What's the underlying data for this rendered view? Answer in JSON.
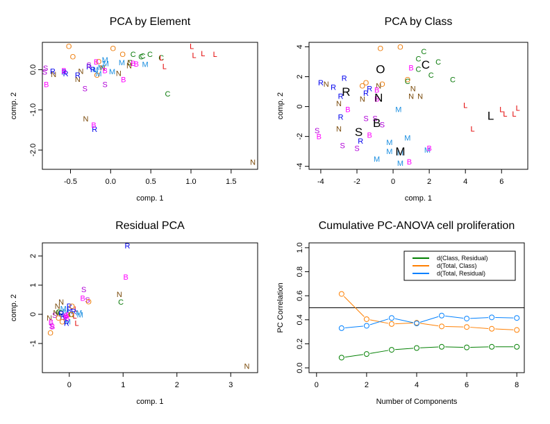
{
  "colors": {
    "O": "#ee7f10",
    "C": "#0a7a0a",
    "L": "#e30000",
    "M": "#1a8ee0",
    "N": "#7a4a0a",
    "R": "#0000ee",
    "S": "#b000d8",
    "B": "#ff00ff",
    "green": "#007f00",
    "orange": "#ff7f00",
    "blue": "#0080ff"
  },
  "chart_data": [
    {
      "type": "scatter",
      "title": "PCA by Element",
      "xlabel": "comp. 1",
      "ylabel": "comp. 2",
      "xlim": [
        -0.85,
        1.83
      ],
      "ylim": [
        -2.48,
        0.68
      ],
      "xticks": [
        -0.5,
        0.0,
        0.5,
        1.0,
        1.5
      ],
      "xtick_labels": [
        "-0.5",
        "0.0",
        "0.5",
        "1.0",
        "1.5"
      ],
      "yticks": [
        0.0,
        -1.0,
        -2.0
      ],
      "ytick_labels": [
        "0.0",
        "-1.0",
        "-2.0"
      ],
      "points": [
        {
          "label": "O",
          "x": -0.52,
          "y": 0.58
        },
        {
          "label": "O",
          "x": -0.47,
          "y": 0.32
        },
        {
          "label": "O",
          "x": 0.03,
          "y": 0.53
        },
        {
          "label": "O",
          "x": 0.15,
          "y": 0.38
        },
        {
          "label": "O",
          "x": -0.15,
          "y": 0.2
        },
        {
          "label": "O",
          "x": -0.17,
          "y": -0.13
        },
        {
          "label": "C",
          "x": 0.28,
          "y": 0.38
        },
        {
          "label": "C",
          "x": 0.38,
          "y": 0.32
        },
        {
          "label": "C",
          "x": 0.4,
          "y": 0.34
        },
        {
          "label": "C",
          "x": 0.49,
          "y": 0.38
        },
        {
          "label": "C",
          "x": 0.63,
          "y": 0.3
        },
        {
          "label": "C",
          "x": 0.71,
          "y": -0.6
        },
        {
          "label": "C",
          "x": 0.24,
          "y": 0.18
        },
        {
          "label": "L",
          "x": 1.01,
          "y": 0.58
        },
        {
          "label": "L",
          "x": 1.04,
          "y": 0.36
        },
        {
          "label": "L",
          "x": 1.15,
          "y": 0.4
        },
        {
          "label": "L",
          "x": 1.3,
          "y": 0.38
        },
        {
          "label": "L",
          "x": 0.67,
          "y": 0.08
        },
        {
          "label": "L",
          "x": 0.63,
          "y": 0.3
        },
        {
          "label": "M",
          "x": -0.07,
          "y": 0.25
        },
        {
          "label": "M",
          "x": -0.06,
          "y": 0.15
        },
        {
          "label": "M",
          "x": -0.12,
          "y": 0.06
        },
        {
          "label": "M",
          "x": -0.15,
          "y": -0.1
        },
        {
          "label": "M",
          "x": 0.14,
          "y": 0.18
        },
        {
          "label": "M",
          "x": 0.02,
          "y": -0.05
        },
        {
          "label": "M",
          "x": 0.43,
          "y": 0.13
        },
        {
          "label": "M",
          "x": -0.19,
          "y": 0.0
        },
        {
          "label": "N",
          "x": -0.71,
          "y": -0.12
        },
        {
          "label": "N",
          "x": -0.37,
          "y": -0.04
        },
        {
          "label": "N",
          "x": -0.41,
          "y": -0.24
        },
        {
          "label": "N",
          "x": -0.31,
          "y": -1.22
        },
        {
          "label": "N",
          "x": 0.1,
          "y": -0.09
        },
        {
          "label": "N",
          "x": 0.23,
          "y": 0.1
        },
        {
          "label": "N",
          "x": 0.24,
          "y": 0.18
        },
        {
          "label": "N",
          "x": 1.77,
          "y": -2.3
        },
        {
          "label": "N",
          "x": -0.1,
          "y": 0.05
        },
        {
          "label": "R",
          "x": -0.72,
          "y": -0.04
        },
        {
          "label": "R",
          "x": -0.58,
          "y": -0.06
        },
        {
          "label": "R",
          "x": -0.56,
          "y": -0.1
        },
        {
          "label": "R",
          "x": -0.41,
          "y": -0.13
        },
        {
          "label": "R",
          "x": -0.27,
          "y": 0.07
        },
        {
          "label": "R",
          "x": -0.22,
          "y": 0.0
        },
        {
          "label": "R",
          "x": -0.2,
          "y": -1.48
        },
        {
          "label": "S",
          "x": -0.81,
          "y": 0.04
        },
        {
          "label": "S",
          "x": -0.82,
          "y": -0.06
        },
        {
          "label": "S",
          "x": -0.32,
          "y": -0.47
        },
        {
          "label": "S",
          "x": -0.07,
          "y": -0.37
        },
        {
          "label": "S",
          "x": -0.27,
          "y": 0.12
        },
        {
          "label": "B",
          "x": -0.8,
          "y": -0.37
        },
        {
          "label": "B",
          "x": -0.58,
          "y": -0.02
        },
        {
          "label": "B",
          "x": -0.21,
          "y": -1.38
        },
        {
          "label": "B",
          "x": -0.18,
          "y": 0.19
        },
        {
          "label": "B",
          "x": -0.07,
          "y": -0.02
        },
        {
          "label": "B",
          "x": 0.16,
          "y": -0.25
        },
        {
          "label": "B",
          "x": 0.28,
          "y": 0.16
        },
        {
          "label": "B",
          "x": 0.32,
          "y": 0.14
        }
      ]
    },
    {
      "type": "scatter",
      "title": "PCA by Class",
      "xlabel": "comp. 1",
      "ylabel": "comp. 2",
      "xlim": [
        -4.65,
        7.45
      ],
      "ylim": [
        -4.2,
        4.3
      ],
      "xticks": [
        -4,
        -2,
        0,
        2,
        4,
        6
      ],
      "xtick_labels": [
        "-4",
        "-2",
        "0",
        "2",
        "4",
        "6"
      ],
      "yticks": [
        4,
        2,
        0,
        -2,
        -4
      ],
      "ytick_labels": [
        "4",
        "2",
        "0",
        "-2",
        "-4"
      ],
      "class_means": [
        {
          "label": "O",
          "x": -0.7,
          "y": 2.5
        },
        {
          "label": "C",
          "x": 1.8,
          "y": 2.8
        },
        {
          "label": "R",
          "x": -2.6,
          "y": 1.0
        },
        {
          "label": "N",
          "x": -0.8,
          "y": 0.6
        },
        {
          "label": "B",
          "x": -0.9,
          "y": -1.1
        },
        {
          "label": "S",
          "x": -1.9,
          "y": -1.7
        },
        {
          "label": "M",
          "x": 0.4,
          "y": -3.0
        },
        {
          "label": "L",
          "x": 5.4,
          "y": -0.6
        }
      ],
      "points": [
        {
          "label": "O",
          "x": -0.7,
          "y": 3.9
        },
        {
          "label": "O",
          "x": 0.4,
          "y": 4.0
        },
        {
          "label": "O",
          "x": -1.7,
          "y": 1.4
        },
        {
          "label": "O",
          "x": -1.5,
          "y": 1.6
        },
        {
          "label": "O",
          "x": -0.6,
          "y": 1.5
        },
        {
          "label": "O",
          "x": 0.8,
          "y": 1.8
        },
        {
          "label": "C",
          "x": 1.7,
          "y": 3.7
        },
        {
          "label": "C",
          "x": 1.4,
          "y": 3.2
        },
        {
          "label": "C",
          "x": 2.5,
          "y": 3.0
        },
        {
          "label": "C",
          "x": 1.4,
          "y": 2.5
        },
        {
          "label": "C",
          "x": 2.1,
          "y": 2.1
        },
        {
          "label": "C",
          "x": 3.3,
          "y": 1.8
        },
        {
          "label": "C",
          "x": 0.8,
          "y": 1.7
        },
        {
          "label": "L",
          "x": 4.0,
          "y": 0.1
        },
        {
          "label": "L",
          "x": 4.4,
          "y": -1.5
        },
        {
          "label": "L",
          "x": 6.0,
          "y": -0.2
        },
        {
          "label": "L",
          "x": 6.2,
          "y": -0.5
        },
        {
          "label": "L",
          "x": 6.7,
          "y": -0.5
        },
        {
          "label": "L",
          "x": 6.9,
          "y": -0.1
        },
        {
          "label": "M",
          "x": 0.3,
          "y": -0.2
        },
        {
          "label": "M",
          "x": 0.8,
          "y": -2.1
        },
        {
          "label": "M",
          "x": -0.2,
          "y": -2.4
        },
        {
          "label": "M",
          "x": -0.2,
          "y": -3.0
        },
        {
          "label": "M",
          "x": -0.9,
          "y": -3.5
        },
        {
          "label": "M",
          "x": 0.4,
          "y": -3.8
        },
        {
          "label": "M",
          "x": 1.9,
          "y": -2.9
        },
        {
          "label": "M",
          "x": 0.4,
          "y": -3.1
        },
        {
          "label": "N",
          "x": -3.7,
          "y": 1.5
        },
        {
          "label": "N",
          "x": -3.0,
          "y": 0.2
        },
        {
          "label": "N",
          "x": -3.0,
          "y": -1.5
        },
        {
          "label": "N",
          "x": -1.7,
          "y": 0.5
        },
        {
          "label": "N",
          "x": -0.8,
          "y": 1.4
        },
        {
          "label": "N",
          "x": 1.1,
          "y": 1.2
        },
        {
          "label": "N",
          "x": 1.0,
          "y": 0.7
        },
        {
          "label": "N",
          "x": 1.5,
          "y": 0.7
        },
        {
          "label": "R",
          "x": -4.0,
          "y": 1.6
        },
        {
          "label": "R",
          "x": -3.3,
          "y": 1.3
        },
        {
          "label": "R",
          "x": -2.7,
          "y": 1.9
        },
        {
          "label": "R",
          "x": -2.9,
          "y": 0.7
        },
        {
          "label": "R",
          "x": -2.9,
          "y": -0.7
        },
        {
          "label": "R",
          "x": -1.5,
          "y": 0.9
        },
        {
          "label": "R",
          "x": -1.3,
          "y": 1.2
        },
        {
          "label": "R",
          "x": -1.8,
          "y": -2.3
        },
        {
          "label": "S",
          "x": -4.2,
          "y": -1.6
        },
        {
          "label": "S",
          "x": -1.5,
          "y": -0.8
        },
        {
          "label": "S",
          "x": -1.0,
          "y": -0.8
        },
        {
          "label": "S",
          "x": -0.6,
          "y": -1.2
        },
        {
          "label": "S",
          "x": -2.8,
          "y": -2.6
        },
        {
          "label": "S",
          "x": -2.0,
          "y": -2.8
        },
        {
          "label": "B",
          "x": -4.1,
          "y": -2.0
        },
        {
          "label": "B",
          "x": -2.5,
          "y": -0.2
        },
        {
          "label": "B",
          "x": -1.3,
          "y": -1.9
        },
        {
          "label": "B",
          "x": -0.9,
          "y": 1.1
        },
        {
          "label": "B",
          "x": -0.9,
          "y": 0.5
        },
        {
          "label": "B",
          "x": 1.0,
          "y": 2.6
        },
        {
          "label": "B",
          "x": 2.0,
          "y": -2.8
        },
        {
          "label": "B",
          "x": 0.9,
          "y": -3.7
        }
      ]
    },
    {
      "type": "scatter",
      "title": "Residual PCA",
      "xlabel": "comp. 1",
      "ylabel": "comp. 2",
      "xlim": [
        -0.5,
        3.5
      ],
      "ylim": [
        -2.0,
        2.45
      ],
      "xticks": [
        0,
        1,
        2,
        3
      ],
      "xtick_labels": [
        "0",
        "1",
        "2",
        "3"
      ],
      "yticks": [
        2,
        1,
        0,
        -1
      ],
      "ytick_labels": [
        "2",
        "1",
        "0",
        "-1"
      ],
      "points": [
        {
          "label": "R",
          "x": 1.08,
          "y": 2.35
        },
        {
          "label": "B",
          "x": 1.05,
          "y": 1.28
        },
        {
          "label": "S",
          "x": 0.27,
          "y": 0.85
        },
        {
          "label": "B",
          "x": 0.25,
          "y": 0.55
        },
        {
          "label": "S",
          "x": 0.34,
          "y": 0.5
        },
        {
          "label": "O",
          "x": 0.36,
          "y": 0.43
        },
        {
          "label": "N",
          "x": 0.93,
          "y": 0.68
        },
        {
          "label": "C",
          "x": 0.96,
          "y": 0.42
        },
        {
          "label": "N",
          "x": 3.3,
          "y": -1.78
        },
        {
          "label": "N",
          "x": -0.22,
          "y": 0.28
        },
        {
          "label": "N",
          "x": -0.15,
          "y": 0.42
        },
        {
          "label": "N",
          "x": -0.37,
          "y": -0.12
        },
        {
          "label": "B",
          "x": -0.34,
          "y": -0.27
        },
        {
          "label": "S",
          "x": -0.33,
          "y": -0.4
        },
        {
          "label": "B",
          "x": -0.31,
          "y": -0.42
        },
        {
          "label": "O",
          "x": -0.35,
          "y": -0.64
        },
        {
          "label": "S",
          "x": -0.27,
          "y": -0.03
        },
        {
          "label": "C",
          "x": -0.2,
          "y": 0.08
        },
        {
          "label": "C",
          "x": -0.16,
          "y": 0.05
        },
        {
          "label": "R",
          "x": -0.15,
          "y": 0.02
        },
        {
          "label": "R",
          "x": -0.12,
          "y": -0.08
        },
        {
          "label": "O",
          "x": -0.2,
          "y": -0.12
        },
        {
          "label": "O",
          "x": -0.13,
          "y": -0.25
        },
        {
          "label": "M",
          "x": -0.11,
          "y": 0.2
        },
        {
          "label": "M",
          "x": -0.06,
          "y": 0.1
        },
        {
          "label": "R",
          "x": 0.0,
          "y": 0.28
        },
        {
          "label": "R",
          "x": 0.0,
          "y": 0.15
        },
        {
          "label": "O",
          "x": 0.05,
          "y": 0.28
        },
        {
          "label": "L",
          "x": 0.13,
          "y": 0.18
        },
        {
          "label": "L",
          "x": 0.1,
          "y": -0.05
        },
        {
          "label": "L",
          "x": 0.14,
          "y": -0.3
        },
        {
          "label": "M",
          "x": 0.18,
          "y": 0.05
        },
        {
          "label": "M",
          "x": 0.2,
          "y": -0.02
        },
        {
          "label": "R",
          "x": 0.08,
          "y": 0.1
        },
        {
          "label": "B",
          "x": -0.04,
          "y": -0.12
        },
        {
          "label": "B",
          "x": -0.02,
          "y": -0.02
        },
        {
          "label": "M",
          "x": -0.03,
          "y": -0.25
        },
        {
          "label": "R",
          "x": -0.05,
          "y": -0.3
        },
        {
          "label": "C",
          "x": 0.04,
          "y": 0.0
        },
        {
          "label": "S",
          "x": -0.08,
          "y": -0.1
        },
        {
          "label": "B",
          "x": -0.06,
          "y": -0.05
        },
        {
          "label": "N",
          "x": -0.25,
          "y": 0.05
        },
        {
          "label": "O",
          "x": 0.03,
          "y": 0.0
        }
      ]
    },
    {
      "type": "line",
      "title": "Cumulative PC-ANOVA cell proliferation",
      "xlabel": "Number of Components",
      "ylabel": "PC Correlation",
      "xlim": [
        -0.3,
        8.3
      ],
      "ylim": [
        -0.04,
        1.04
      ],
      "xticks": [
        0,
        2,
        4,
        6,
        8
      ],
      "xtick_labels": [
        "0",
        "2",
        "4",
        "6",
        "8"
      ],
      "yticks": [
        0.0,
        0.2,
        0.4,
        0.6,
        0.8,
        1.0
      ],
      "ytick_labels": [
        "0.0",
        "0.2",
        "0.4",
        "0.6",
        "0.8",
        "1.0"
      ],
      "hline": 0.5,
      "legend_position": "top-right",
      "x": [
        1,
        2,
        3,
        4,
        5,
        6,
        7,
        8
      ],
      "series": [
        {
          "name": "d(Class, Residual)",
          "color_key": "green",
          "values": [
            0.085,
            0.115,
            0.15,
            0.165,
            0.175,
            0.17,
            0.175,
            0.175
          ]
        },
        {
          "name": "d(Total, Class)",
          "color_key": "orange",
          "values": [
            0.615,
            0.405,
            0.365,
            0.375,
            0.345,
            0.34,
            0.325,
            0.315
          ]
        },
        {
          "name": "d(Total, Residual)",
          "color_key": "blue",
          "values": [
            0.33,
            0.35,
            0.415,
            0.37,
            0.435,
            0.41,
            0.42,
            0.415
          ]
        }
      ]
    }
  ]
}
